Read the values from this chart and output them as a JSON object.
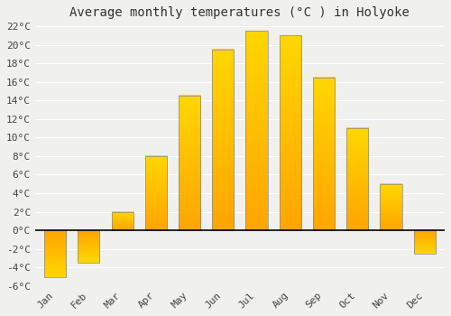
{
  "title": "Average monthly temperatures (°C ) in Holyoke",
  "months": [
    "Jan",
    "Feb",
    "Mar",
    "Apr",
    "May",
    "Jun",
    "Jul",
    "Aug",
    "Sep",
    "Oct",
    "Nov",
    "Dec"
  ],
  "values": [
    -5.0,
    -3.5,
    2.0,
    8.0,
    14.5,
    19.5,
    21.5,
    21.0,
    16.5,
    11.0,
    5.0,
    -2.5
  ],
  "bar_color_bottom": "#FFA500",
  "bar_color_top": "#FFD700",
  "bar_edge_color": "#888888",
  "ylim": [
    -6,
    22
  ],
  "yticks": [
    -6,
    -4,
    -2,
    0,
    2,
    4,
    6,
    8,
    10,
    12,
    14,
    16,
    18,
    20,
    22
  ],
  "ytick_labels": [
    "-6°C",
    "-4°C",
    "-2°C",
    "0°C",
    "2°C",
    "4°C",
    "6°C",
    "8°C",
    "10°C",
    "12°C",
    "14°C",
    "16°C",
    "18°C",
    "20°C",
    "22°C"
  ],
  "background_color": "#f0f0ee",
  "plot_bg_color": "#f0f0ee",
  "grid_color": "#ffffff",
  "title_fontsize": 10,
  "tick_fontsize": 8,
  "bar_width": 0.65,
  "figsize": [
    5.0,
    3.5
  ],
  "dpi": 100
}
